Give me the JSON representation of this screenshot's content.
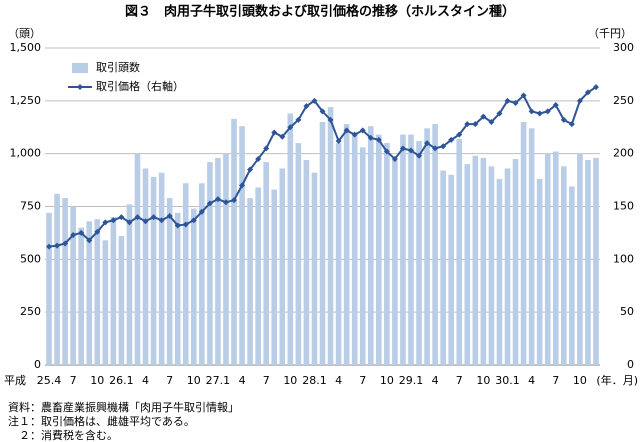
{
  "chart_data": {
    "type": "bar_line",
    "title": "図３　肉用子牛取引頭数および取引価格の推移（ホルスタイン種）",
    "ylabel": "（頭）",
    "y2label": "（千円）",
    "x_prefix": "平成",
    "xlabel": "(年．月)",
    "categories": [
      "25.4",
      null,
      null,
      "7",
      null,
      null,
      "10",
      null,
      null,
      "26.1",
      null,
      null,
      "4",
      null,
      null,
      "7",
      null,
      null,
      "10",
      null,
      null,
      "27.1",
      null,
      null,
      "4",
      null,
      null,
      "7",
      null,
      null,
      "10",
      null,
      null,
      "28.1",
      null,
      null,
      "4",
      null,
      null,
      "7",
      null,
      null,
      "10",
      null,
      null,
      "29.1",
      null,
      null,
      "4",
      null,
      null,
      "7",
      null,
      null,
      "10",
      null,
      null,
      "30.1",
      null,
      null,
      "4",
      null,
      null,
      "7",
      null,
      null,
      "10",
      null,
      null
    ],
    "series": [
      {
        "name": "取引頭数",
        "color": "#b9cde6",
        "type": "bar",
        "values": [
          720,
          810,
          790,
          750,
          650,
          680,
          690,
          590,
          700,
          610,
          760,
          1000,
          930,
          890,
          910,
          790,
          720,
          860,
          740,
          860,
          960,
          980,
          1000,
          1165,
          1130,
          790,
          840,
          960,
          830,
          930,
          1190,
          1050,
          970,
          910,
          1150,
          1220,
          1050,
          1140,
          1090,
          1030,
          1130,
          1090,
          1050,
          970,
          1090,
          1090,
          1060,
          1120,
          1140,
          920,
          900,
          1070,
          950,
          990,
          980,
          940,
          880,
          930,
          975,
          1150,
          1120,
          880,
          1000,
          1010,
          940,
          845,
          1000,
          970,
          980
        ]
      },
      {
        "name": "取引価格（右軸）",
        "color": "#2e5597",
        "type": "line",
        "axis": "y2",
        "values": [
          112,
          113,
          115,
          123,
          125,
          118,
          126,
          135,
          137,
          140,
          135,
          140,
          136,
          140,
          137,
          141,
          132,
          133,
          137,
          145,
          153,
          157,
          154,
          156,
          170,
          185,
          195,
          205,
          220,
          216,
          225,
          232,
          245,
          250,
          240,
          232,
          212,
          222,
          218,
          222,
          215,
          213,
          202,
          195,
          205,
          203,
          198,
          210,
          205,
          207,
          213,
          218,
          228,
          228,
          235,
          230,
          238,
          250,
          248,
          255,
          240,
          238,
          240,
          246,
          232,
          228,
          250,
          258,
          263
        ]
      }
    ],
    "ylim": [
      0,
      1500
    ],
    "yticks": [
      0,
      250,
      500,
      750,
      {
        "value": 1000,
        "label": "1,000"
      },
      {
        "value": 1250,
        "label": "1,250"
      },
      {
        "value": 1500,
        "label": "1,500"
      }
    ],
    "y2lim": [
      0,
      300
    ],
    "y2ticks": [
      0,
      50,
      100,
      150,
      200,
      250,
      300
    ],
    "grid": true,
    "legend": "top-left",
    "notes": [
      "資料：農畜産業振興機構「肉用子牛取引情報」",
      "注１：取引価格は、雌雄平均である。",
      "　２：消費税を含む。"
    ]
  }
}
